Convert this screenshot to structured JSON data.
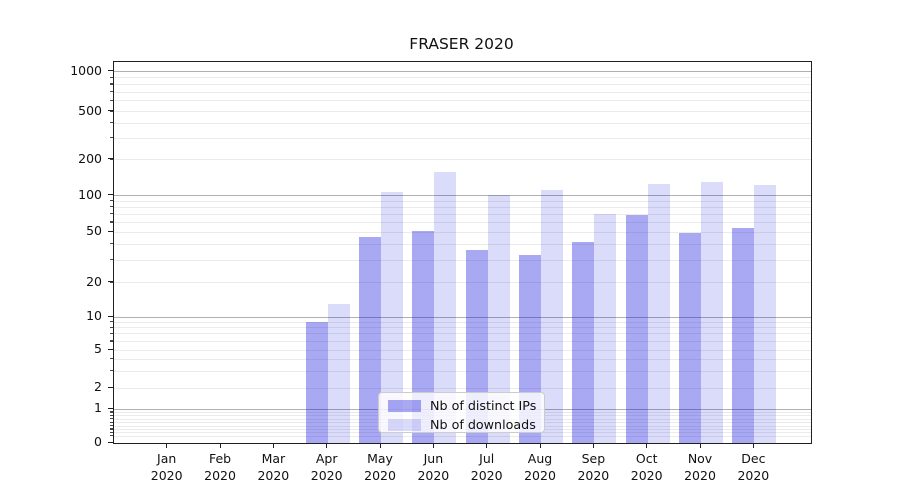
{
  "chart_data": {
    "type": "bar",
    "title": "FRASER 2020",
    "categories": [
      "Jan",
      "Feb",
      "Mar",
      "Apr",
      "May",
      "Jun",
      "Jul",
      "Aug",
      "Sep",
      "Oct",
      "Nov",
      "Dec"
    ],
    "category_year": "2020",
    "series": [
      {
        "name": "Nb of distinct IPs",
        "color": "rgba(0,0,220,0.34)",
        "values": [
          0,
          0,
          0,
          9,
          46,
          51,
          36,
          33,
          42,
          69,
          49,
          54
        ]
      },
      {
        "name": "Nb of downloads",
        "color": "rgba(0,0,220,0.14)",
        "values": [
          0,
          0,
          0,
          13,
          107,
          158,
          101,
          111,
          70,
          126,
          129,
          122
        ]
      }
    ],
    "xlabel": "",
    "ylabel": "",
    "yticks": [
      0,
      1,
      2,
      5,
      10,
      20,
      50,
      100,
      200,
      500,
      1000
    ],
    "ylim": [
      0,
      1160
    ],
    "yscale": "asinh-log",
    "grid": "horizontal, major lines at 1/10/100/1000, faint minor lines",
    "legend_position": "inside lower-center",
    "colors": {
      "major_grid": "#b0b0b0",
      "minor_grid": "#ebebeb",
      "spine": "#1f1f1f"
    }
  }
}
